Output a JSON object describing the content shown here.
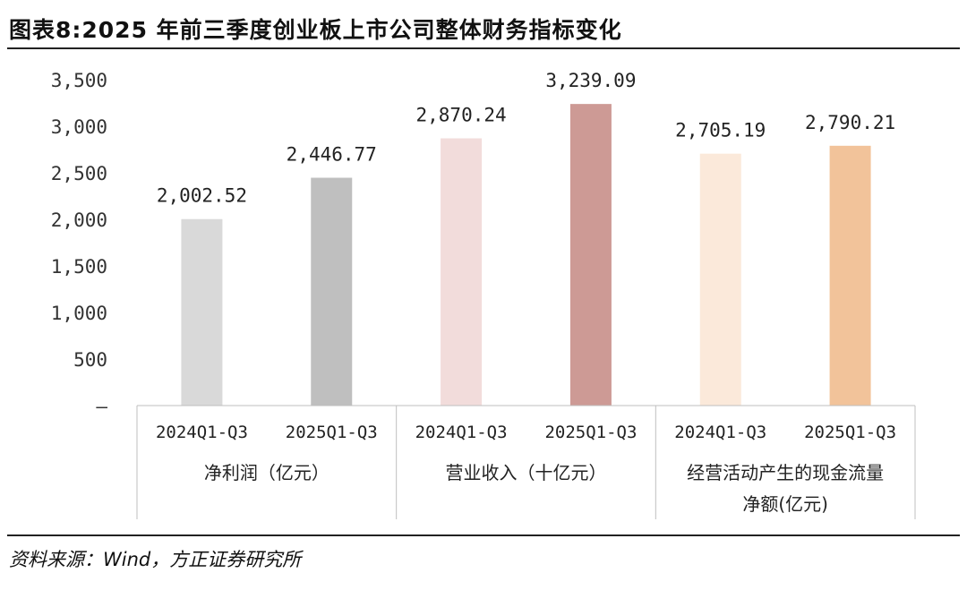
{
  "title": "图表8:2025 年前三季度创业板上市公司整体财务指标变化",
  "source": "资料来源：Wind，方正证券研究所",
  "chart_data": {
    "type": "bar",
    "ylim": [
      0,
      3500
    ],
    "yticks": [
      0,
      500,
      1000,
      1500,
      2000,
      2500,
      3000,
      3500
    ],
    "ytick_labels": [
      "–",
      "500",
      "1,000",
      "1,500",
      "2,000",
      "2,500",
      "3,000",
      "3,500"
    ],
    "grid": false,
    "legend": "none",
    "groups": [
      {
        "name_lines": [
          "净利润（亿元）"
        ],
        "bars": [
          {
            "category": "2024Q1-Q3",
            "value": 2002.52,
            "label": "2,002.52",
            "color": "#d9d9d9"
          },
          {
            "category": "2025Q1-Q3",
            "value": 2446.77,
            "label": "2,446.77",
            "color": "#bfbfbf"
          }
        ]
      },
      {
        "name_lines": [
          "营业收入（十亿元）"
        ],
        "bars": [
          {
            "category": "2024Q1-Q3",
            "value": 2870.24,
            "label": "2,870.24",
            "color": "#f2dcdb"
          },
          {
            "category": "2025Q1-Q3",
            "value": 3239.09,
            "label": "3,239.09",
            "color": "#cd9a95"
          }
        ]
      },
      {
        "name_lines": [
          "经营活动产生的现金流量",
          "净额(亿元)"
        ],
        "bars": [
          {
            "category": "2024Q1-Q3",
            "value": 2705.19,
            "label": "2,705.19",
            "color": "#fbe9da"
          },
          {
            "category": "2025Q1-Q3",
            "value": 2790.21,
            "label": "2,790.21",
            "color": "#f2c39a"
          }
        ]
      }
    ]
  }
}
